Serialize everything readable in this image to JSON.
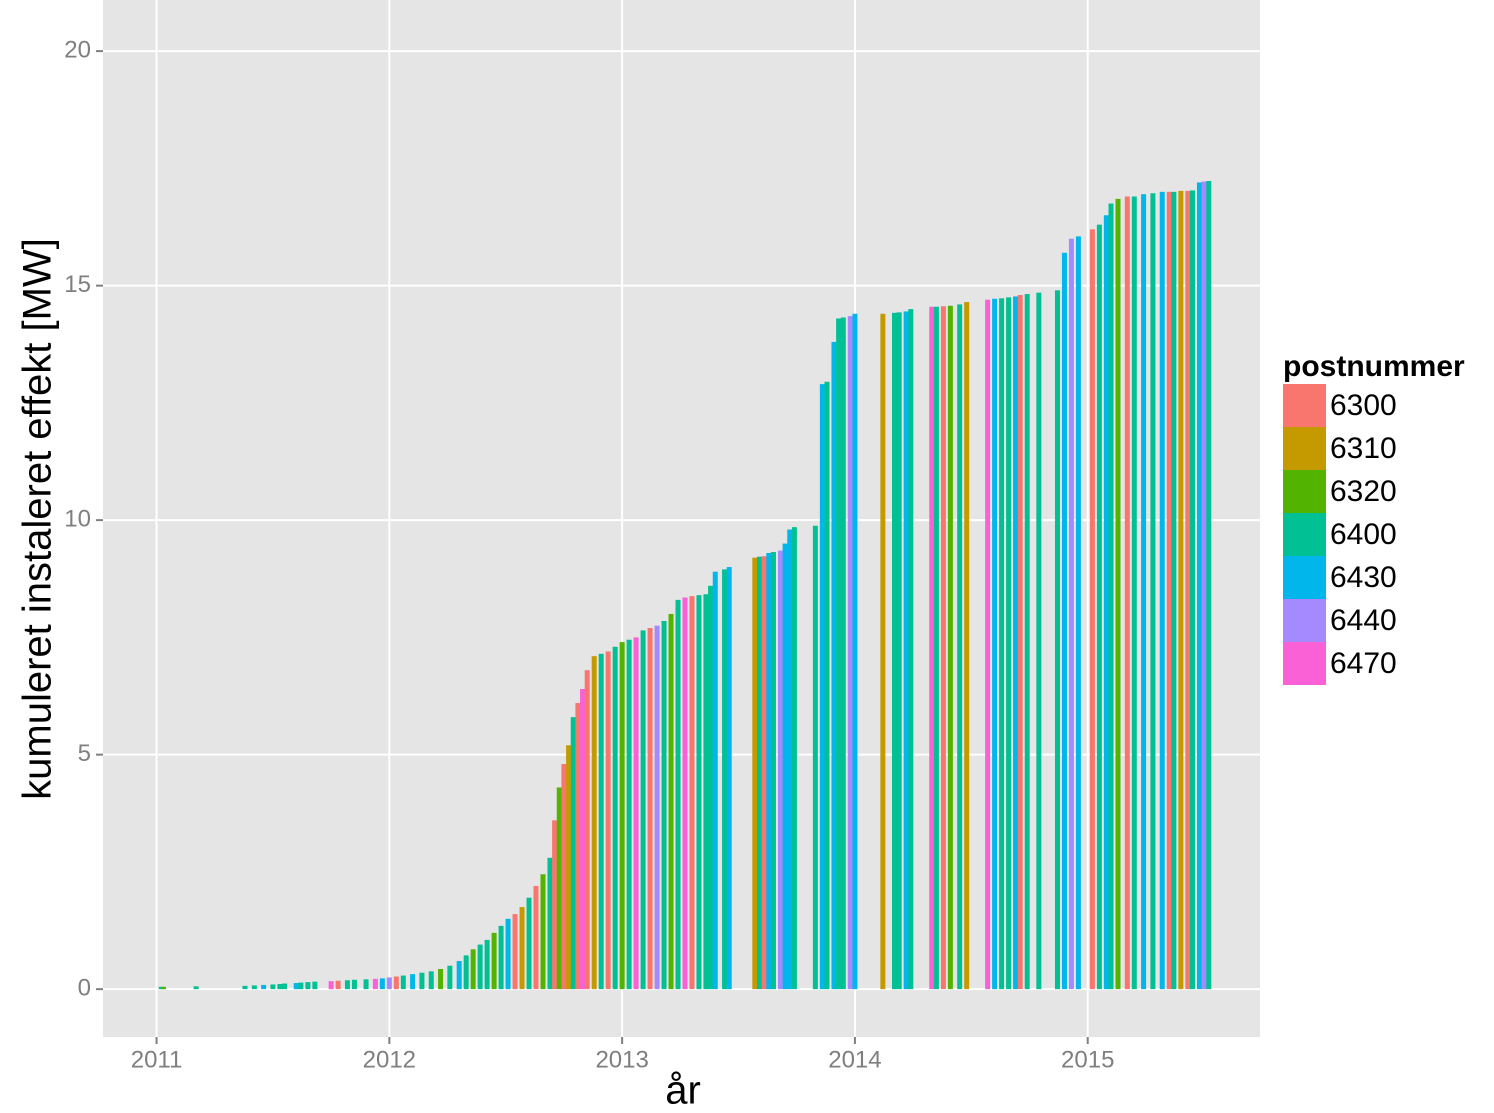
{
  "chart_data": {
    "type": "bar",
    "x_label": "år",
    "y_label": "kumuleret instaleret effekt [MW]",
    "xlim": [
      2010.77,
      2015.74
    ],
    "xticks": [
      2011,
      2012,
      2013,
      2014,
      2015
    ],
    "ylim": [
      -1.02,
      21.09
    ],
    "yticks": [
      0,
      5,
      10,
      15,
      20
    ],
    "grid": true,
    "legend": {
      "title": "postnummer",
      "position": "right",
      "labels": [
        6300,
        6310,
        6320,
        6400,
        6430,
        6440,
        6470
      ],
      "colors": [
        "#F8766D",
        "#C49A00",
        "#53B400",
        "#00C094",
        "#00B6EB",
        "#A58AFF",
        "#FB61D7"
      ]
    },
    "x": [
      2011.02,
      2011.03,
      2011.17,
      2011.38,
      2011.42,
      2011.46,
      2011.5,
      2011.53,
      2011.55,
      2011.6,
      2011.62,
      2011.65,
      2011.68,
      2011.75,
      2011.78,
      2011.82,
      2011.85,
      2011.9,
      2011.94,
      2011.97,
      2012.0,
      2012.03,
      2012.06,
      2012.1,
      2012.14,
      2012.18,
      2012.22,
      2012.26,
      2012.3,
      2012.33,
      2012.36,
      2012.39,
      2012.42,
      2012.45,
      2012.48,
      2012.51,
      2012.54,
      2012.57,
      2012.6,
      2012.63,
      2012.66,
      2012.69,
      2012.71,
      2012.73,
      2012.75,
      2012.77,
      2012.79,
      2012.81,
      2012.83,
      2012.85,
      2012.88,
      2012.91,
      2012.94,
      2012.97,
      2013.0,
      2013.03,
      2013.06,
      2013.09,
      2013.12,
      2013.15,
      2013.18,
      2013.21,
      2013.24,
      2013.27,
      2013.3,
      2013.33,
      2013.36,
      2013.38,
      2013.4,
      2013.44,
      2013.46,
      2013.57,
      2013.59,
      2013.61,
      2013.63,
      2013.65,
      2013.68,
      2013.7,
      2013.72,
      2013.74,
      2013.83,
      2013.86,
      2013.88,
      2013.91,
      2013.93,
      2013.95,
      2013.98,
      2014.0,
      2014.12,
      2014.17,
      2014.19,
      2014.22,
      2014.24,
      2014.33,
      2014.35,
      2014.38,
      2014.41,
      2014.45,
      2014.48,
      2014.57,
      2014.6,
      2014.63,
      2014.66,
      2014.69,
      2014.71,
      2014.74,
      2014.79,
      2014.87,
      2014.9,
      2014.93,
      2014.96,
      2015.02,
      2015.05,
      2015.08,
      2015.1,
      2015.13,
      2015.17,
      2015.2,
      2015.24,
      2015.28,
      2015.32,
      2015.35,
      2015.37,
      2015.4,
      2015.43,
      2015.45,
      2015.48,
      2015.5,
      2015.52
    ],
    "values": [
      0.05,
      0.05,
      0.06,
      0.07,
      0.08,
      0.09,
      0.1,
      0.11,
      0.12,
      0.13,
      0.14,
      0.15,
      0.16,
      0.17,
      0.18,
      0.19,
      0.2,
      0.21,
      0.22,
      0.23,
      0.25,
      0.27,
      0.29,
      0.32,
      0.35,
      0.38,
      0.43,
      0.5,
      0.6,
      0.72,
      0.85,
      0.95,
      1.05,
      1.2,
      1.35,
      1.5,
      1.6,
      1.75,
      1.95,
      2.2,
      2.45,
      2.8,
      3.6,
      4.3,
      4.8,
      5.2,
      5.8,
      6.1,
      6.4,
      6.8,
      7.1,
      7.15,
      7.2,
      7.3,
      7.4,
      7.45,
      7.5,
      7.65,
      7.7,
      7.75,
      7.85,
      8.0,
      8.3,
      8.35,
      8.38,
      8.4,
      8.42,
      8.6,
      8.9,
      8.95,
      9.0,
      9.2,
      9.22,
      9.23,
      9.3,
      9.32,
      9.35,
      9.5,
      9.8,
      9.85,
      9.88,
      12.9,
      12.95,
      13.8,
      14.3,
      14.32,
      14.35,
      14.4,
      14.4,
      14.42,
      14.43,
      14.45,
      14.5,
      14.55,
      14.55,
      14.56,
      14.57,
      14.6,
      14.65,
      14.7,
      14.72,
      14.73,
      14.75,
      14.77,
      14.8,
      14.82,
      14.85,
      14.9,
      15.7,
      16.0,
      16.05,
      16.2,
      16.3,
      16.5,
      16.75,
      16.85,
      16.9,
      16.9,
      16.95,
      16.97,
      17.0,
      17.0,
      17.0,
      17.02,
      17.02,
      17.03,
      17.2,
      17.22,
      17.23
    ],
    "groups": [
      6400,
      6320,
      6400,
      6400,
      6400,
      6430,
      6400,
      6400,
      6400,
      6430,
      6400,
      6400,
      6400,
      6470,
      6300,
      6400,
      6400,
      6400,
      6470,
      6430,
      6440,
      6300,
      6400,
      6430,
      6400,
      6400,
      6320,
      6400,
      6430,
      6400,
      6320,
      6400,
      6400,
      6320,
      6400,
      6430,
      6300,
      6310,
      6400,
      6300,
      6320,
      6400,
      6300,
      6320,
      6300,
      6310,
      6400,
      6300,
      6470,
      6300,
      6310,
      6400,
      6300,
      6400,
      6320,
      6400,
      6470,
      6400,
      6300,
      6440,
      6400,
      6320,
      6400,
      6470,
      6300,
      6400,
      6400,
      6400,
      6430,
      6400,
      6430,
      6310,
      6400,
      6300,
      6430,
      6400,
      6440,
      6430,
      6430,
      6400,
      6400,
      6430,
      6400,
      6430,
      6400,
      6400,
      6440,
      6430,
      6310,
      6400,
      6400,
      6430,
      6400,
      6470,
      6400,
      6300,
      6320,
      6400,
      6310,
      6470,
      6430,
      6400,
      6400,
      6430,
      6300,
      6400,
      6400,
      6400,
      6430,
      6440,
      6430,
      6300,
      6400,
      6430,
      6400,
      6320,
      6300,
      6400,
      6430,
      6400,
      6430,
      6300,
      6400,
      6310,
      6300,
      6400,
      6430,
      6440,
      6400
    ]
  }
}
